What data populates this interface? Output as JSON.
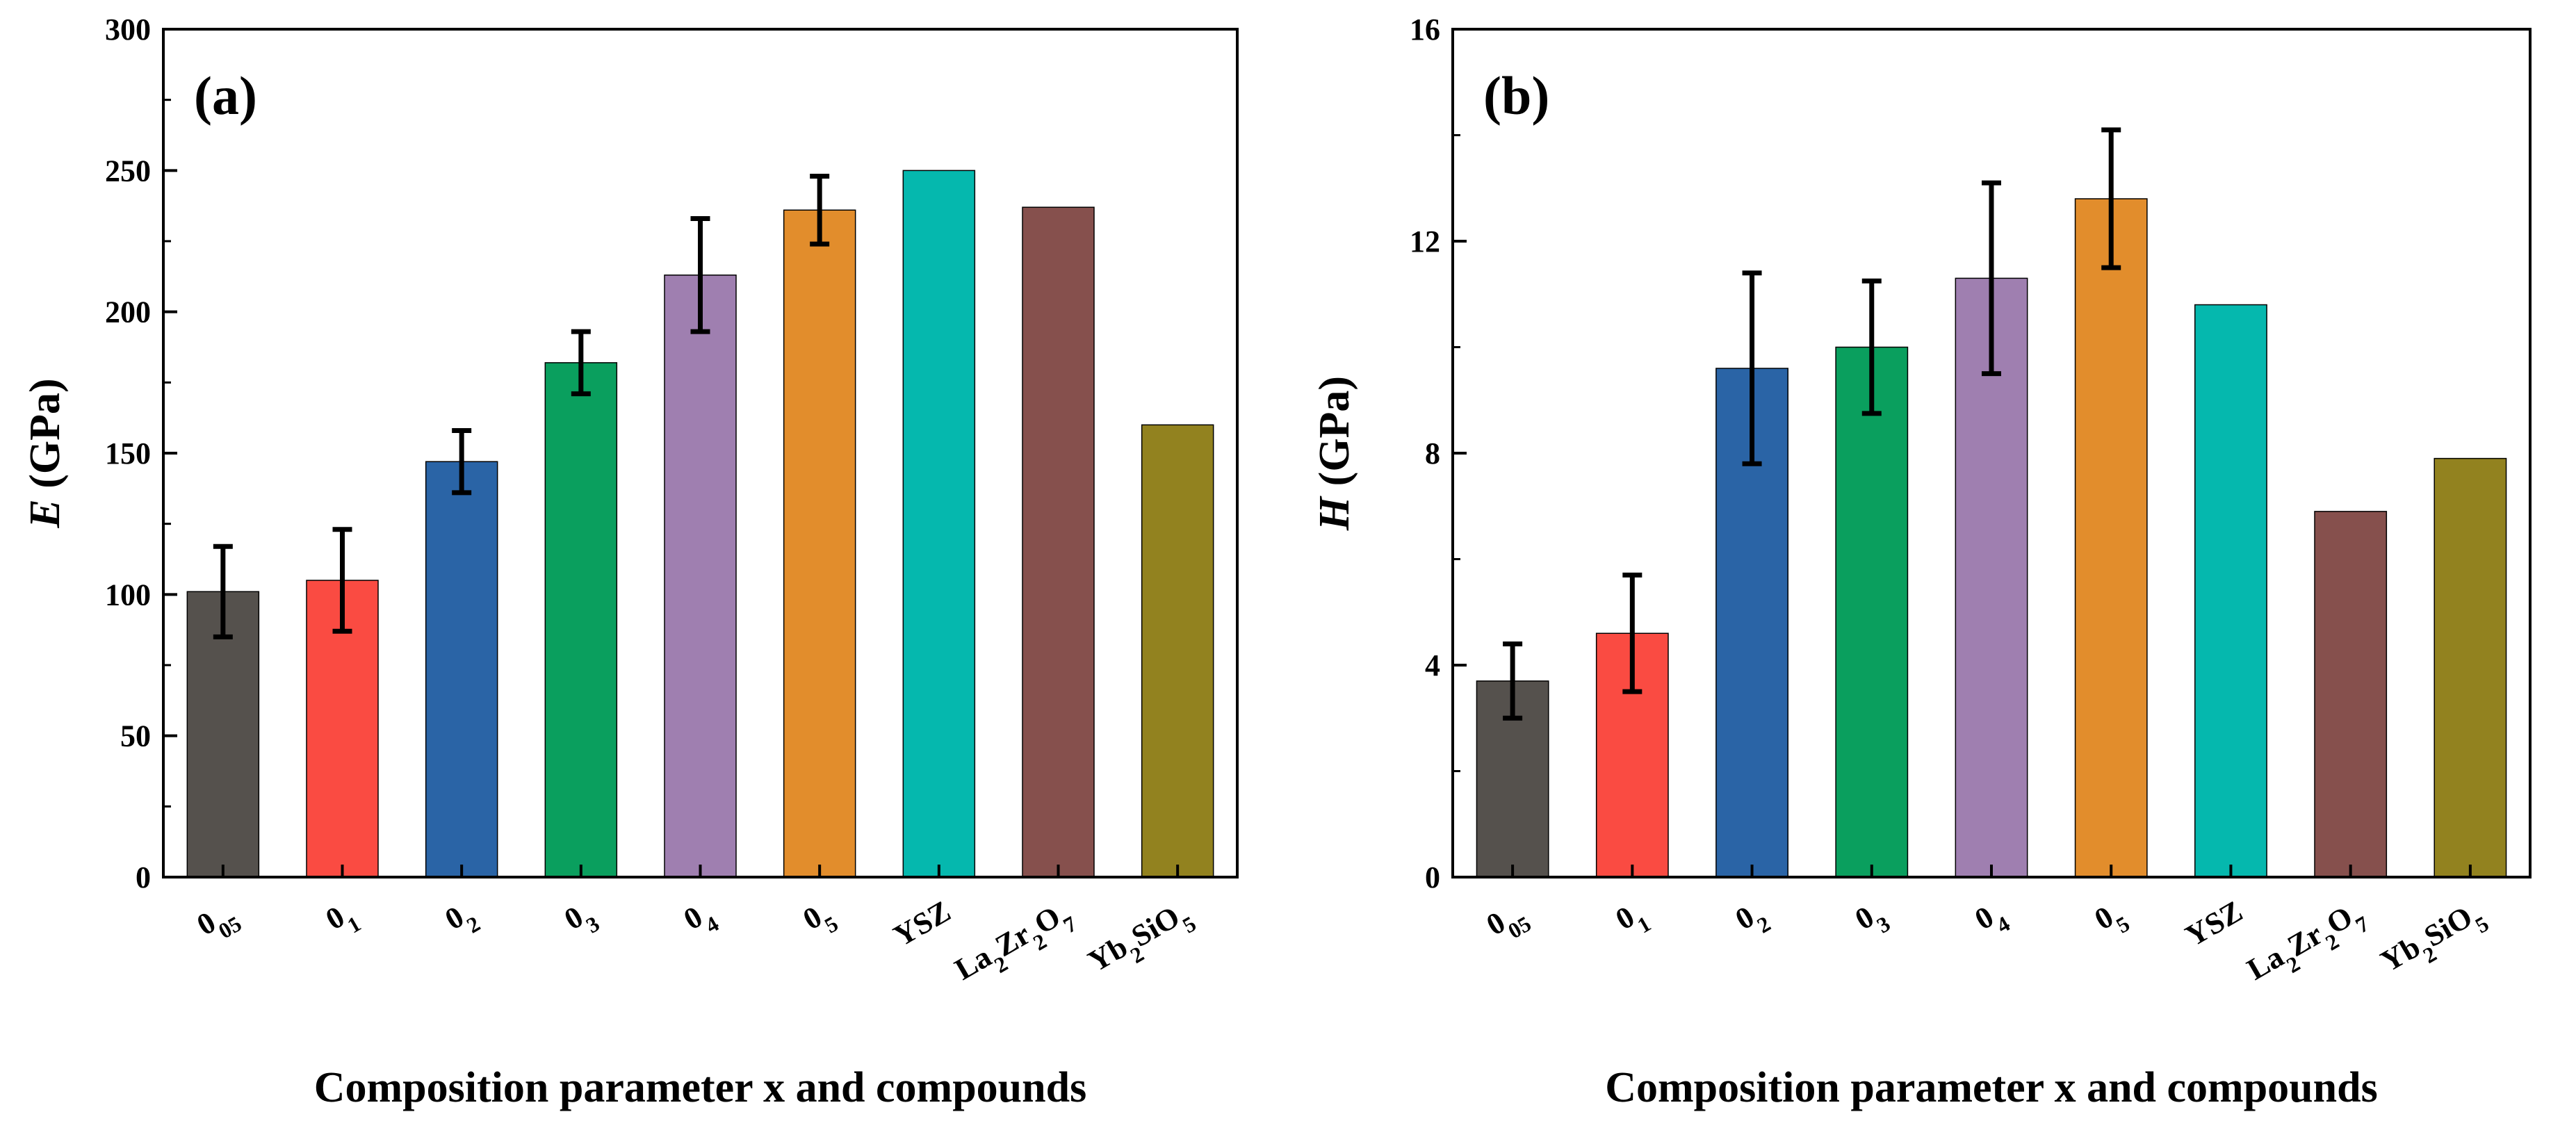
{
  "chart_data": [
    {
      "type": "bar",
      "panel_label": "(a)",
      "ylabel_symbol": "E",
      "ylabel_unit": " (GPa)",
      "xlabel": "Composition parameter x and compounds",
      "ylim": [
        0,
        300
      ],
      "yticks": [
        0,
        50,
        100,
        150,
        200,
        250,
        300
      ],
      "grid": false,
      "categories": [
        "0.05",
        "0.1",
        "0.2",
        "0.3",
        "0.4",
        "0.5",
        "YSZ",
        "La2Zr2O7",
        "Yb2SiO5"
      ],
      "values": [
        101,
        105,
        147,
        182,
        213,
        236,
        250,
        237,
        160
      ],
      "errors": [
        16,
        18,
        11,
        11,
        20,
        12,
        null,
        null,
        null
      ],
      "colors": [
        "#55514d",
        "#fa4b42",
        "#2a64a6",
        "#0a9f5e",
        "#9f7fb0",
        "#e28d2c",
        "#05b8ae",
        "#86504d",
        "#92821f"
      ]
    },
    {
      "type": "bar",
      "panel_label": "(b)",
      "ylabel_symbol": "H",
      "ylabel_unit": " (GPa)",
      "xlabel": "Composition parameter x and compounds",
      "ylim": [
        0,
        16
      ],
      "yticks": [
        0,
        4,
        8,
        12,
        16
      ],
      "grid": false,
      "categories": [
        "0.05",
        "0.1",
        "0.2",
        "0.3",
        "0.4",
        "0.5",
        "YSZ",
        "La2Zr2O7",
        "Yb2SiO5"
      ],
      "values": [
        3.7,
        4.6,
        9.6,
        10.0,
        11.3,
        12.8,
        10.8,
        6.9,
        7.9
      ],
      "errors": [
        0.7,
        1.1,
        1.8,
        1.25,
        1.8,
        1.3,
        null,
        null,
        null
      ],
      "colors": [
        "#55514d",
        "#fa4b42",
        "#2a64a6",
        "#0a9f5e",
        "#9f7fb0",
        "#e28d2c",
        "#05b8ae",
        "#86504d",
        "#92821f"
      ]
    }
  ]
}
